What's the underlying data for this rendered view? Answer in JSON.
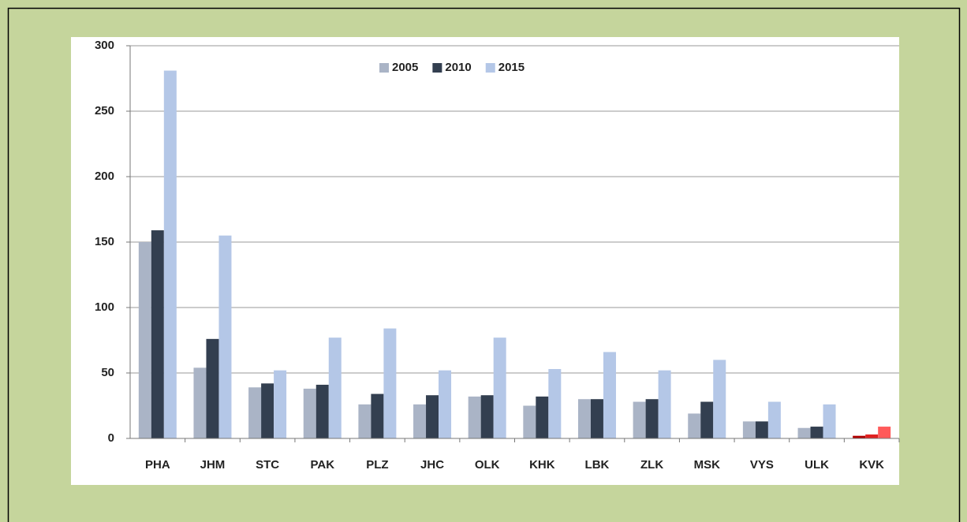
{
  "chart_data": {
    "type": "bar",
    "categories": [
      "PHA",
      "JHM",
      "STC",
      "PAK",
      "PLZ",
      "JHC",
      "OLK",
      "KHK",
      "LBK",
      "ZLK",
      "MSK",
      "VYS",
      "ULK",
      "KVK"
    ],
    "series": [
      {
        "name": "2005",
        "color": "#aab4c6",
        "values": [
          150,
          54,
          39,
          38,
          26,
          26,
          32,
          25,
          30,
          28,
          19,
          13,
          8,
          2
        ],
        "colors": [
          "#aab4c6",
          "#aab4c6",
          "#aab4c6",
          "#aab4c6",
          "#aab4c6",
          "#aab4c6",
          "#aab4c6",
          "#aab4c6",
          "#aab4c6",
          "#aab4c6",
          "#aab4c6",
          "#aab4c6",
          "#aab4c6",
          "#b00000"
        ]
      },
      {
        "name": "2010",
        "color": "#333f50",
        "values": [
          159,
          76,
          42,
          41,
          34,
          33,
          33,
          32,
          30,
          30,
          28,
          13,
          9,
          3
        ],
        "colors": [
          "#333f50",
          "#333f50",
          "#333f50",
          "#333f50",
          "#333f50",
          "#333f50",
          "#333f50",
          "#333f50",
          "#333f50",
          "#333f50",
          "#333f50",
          "#333f50",
          "#333f50",
          "#e02020"
        ]
      },
      {
        "name": "2015",
        "color": "#b4c7e7",
        "values": [
          281,
          155,
          52,
          77,
          84,
          52,
          77,
          53,
          66,
          52,
          60,
          28,
          26,
          9
        ],
        "colors": [
          "#b4c7e7",
          "#b4c7e7",
          "#b4c7e7",
          "#b4c7e7",
          "#b4c7e7",
          "#b4c7e7",
          "#b4c7e7",
          "#b4c7e7",
          "#b4c7e7",
          "#b4c7e7",
          "#b4c7e7",
          "#b4c7e7",
          "#b4c7e7",
          "#ff5a5a"
        ]
      }
    ],
    "ylim": [
      0,
      300
    ],
    "yticks": [
      0,
      50,
      100,
      150,
      200,
      250,
      300
    ],
    "grid": true,
    "legend": "top"
  }
}
